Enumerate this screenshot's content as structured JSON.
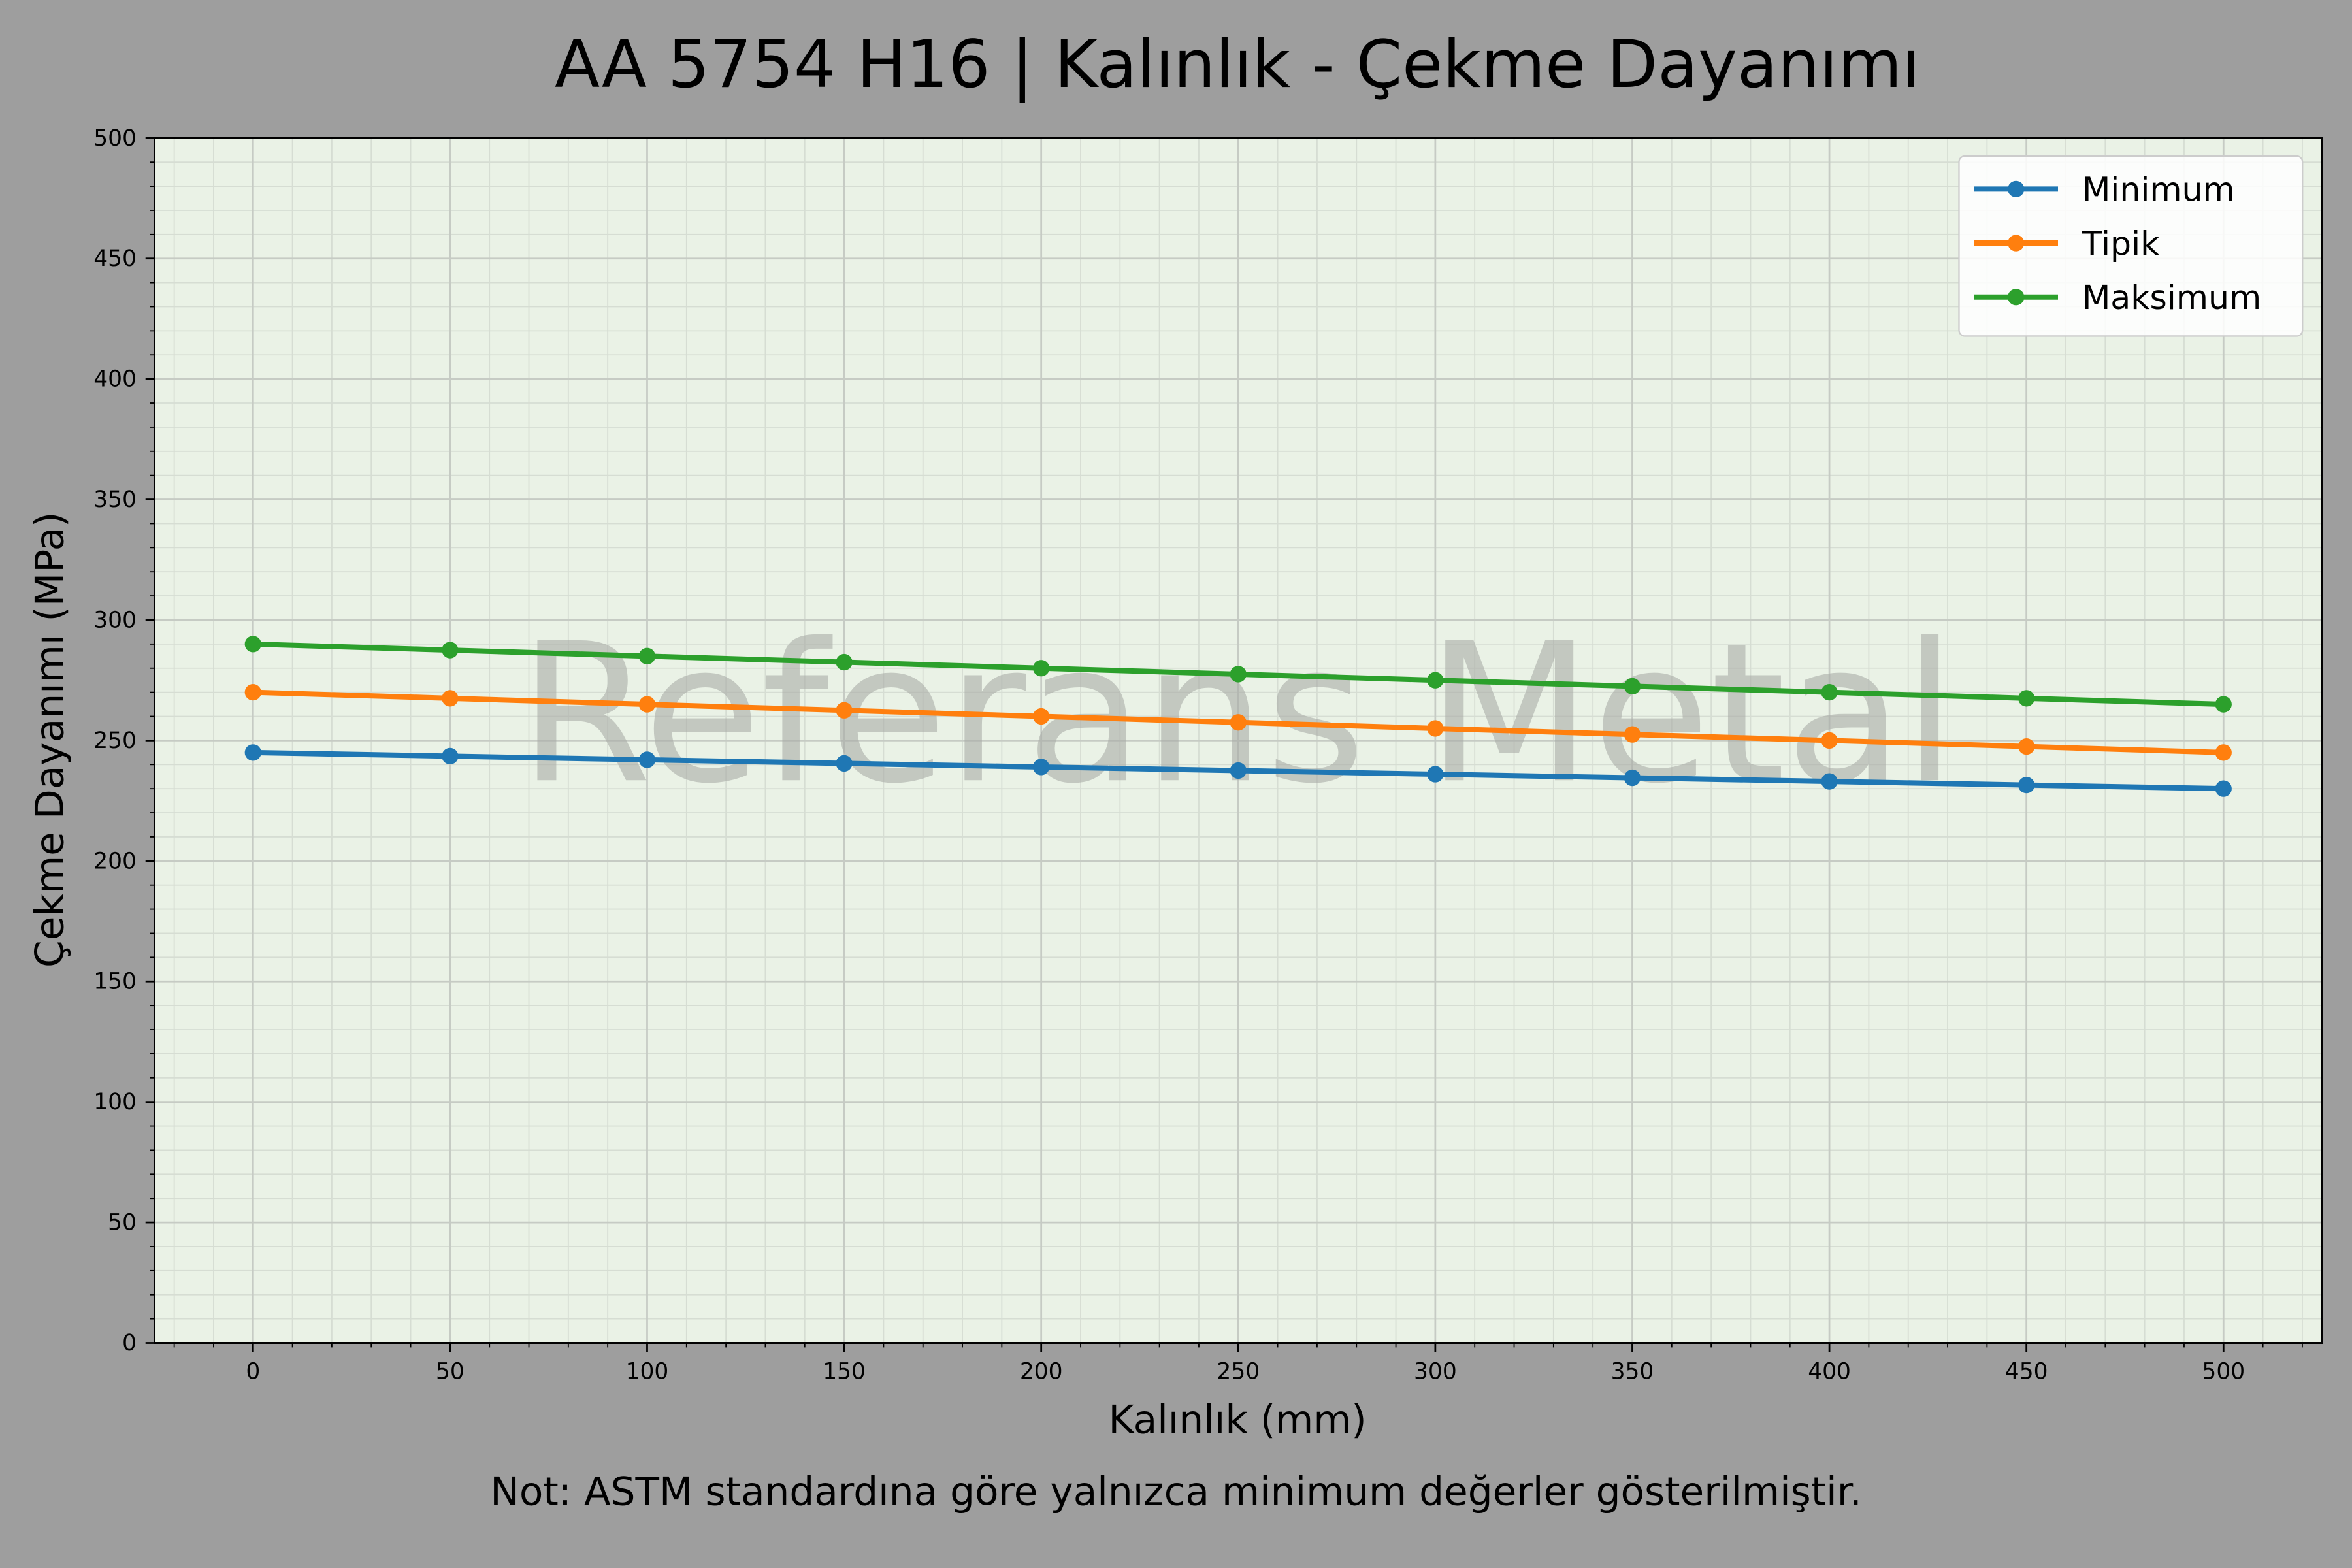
{
  "chart_data": {
    "type": "line",
    "title": "AA 5754 H16 | Kalınlık - Çekme Dayanımı",
    "xlabel": "Kalınlık (mm)",
    "ylabel": "Çekme Dayanımı (MPa)",
    "note": "Not: ASTM standardına göre yalnızca minimum değerler gösterilmiştir.",
    "watermark": "Referans Metal",
    "x": [
      0,
      50,
      100,
      150,
      200,
      250,
      300,
      350,
      400,
      450,
      500
    ],
    "xlim": [
      -25,
      525
    ],
    "ylim": [
      0,
      500
    ],
    "xticks": [
      "0",
      "50",
      "100",
      "150",
      "200",
      "250",
      "300",
      "350",
      "400",
      "450",
      "500"
    ],
    "yticks": [
      "0",
      "50",
      "100",
      "150",
      "200",
      "250",
      "300",
      "350",
      "400",
      "450",
      "500"
    ],
    "grid": true,
    "minor_grid": true,
    "legend_position": "top-right",
    "background": "#eaf2e6",
    "figure_background": "#9e9e9e",
    "series": [
      {
        "name": "Minimum",
        "color": "#1f77b4",
        "values": [
          245,
          243.5,
          242,
          240.5,
          239,
          237.5,
          236,
          234.5,
          233,
          231.5,
          230
        ]
      },
      {
        "name": "Tipik",
        "color": "#ff7f0e",
        "values": [
          270,
          267.5,
          265,
          262.5,
          260,
          257.5,
          255,
          252.5,
          250,
          247.5,
          245
        ]
      },
      {
        "name": "Maksimum",
        "color": "#2ca02c",
        "values": [
          290,
          287.5,
          285,
          282.5,
          280,
          277.5,
          275,
          272.5,
          270,
          267.5,
          265
        ]
      }
    ]
  }
}
